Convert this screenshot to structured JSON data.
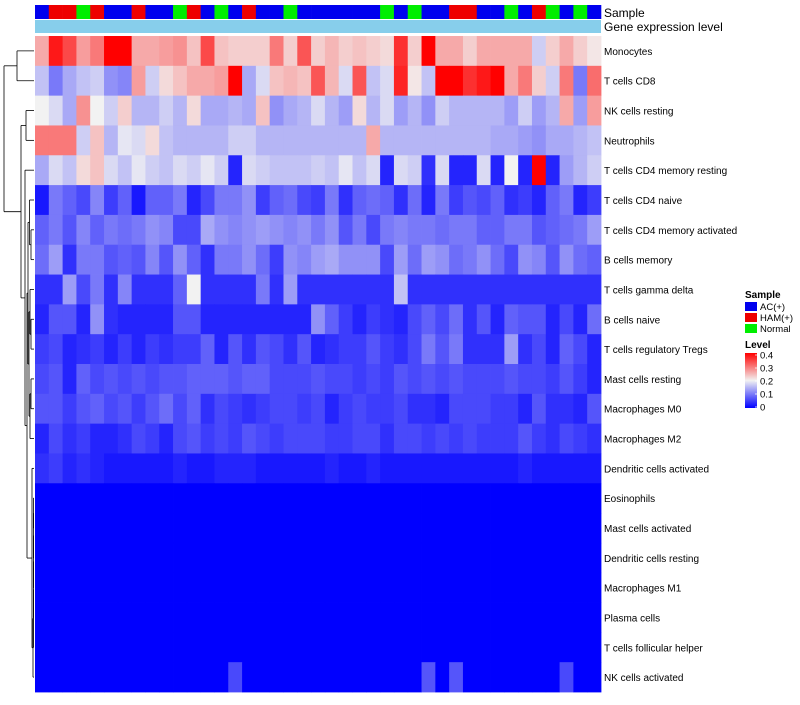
{
  "chart_data": {
    "type": "heatmap",
    "title": "",
    "annotations": {
      "sample_label": "Sample",
      "expression_label": "Gene expression level"
    },
    "legend": {
      "sample_title": "Sample",
      "sample_groups": [
        {
          "name": "AC(+)",
          "color": "#0000ee"
        },
        {
          "name": "HAM(+)",
          "color": "#ee0000"
        },
        {
          "name": "Normal",
          "color": "#00ee00"
        }
      ],
      "level_title": "Level",
      "level_ticks": [
        "0.4",
        "0.3",
        "0.2",
        "0.1",
        "0"
      ],
      "range": [
        0,
        0.4
      ],
      "placement": "right"
    },
    "colors": {
      "low": "#0000ff",
      "mid": "#f2f2f2",
      "high": "#ff0000",
      "expression_bar": "#87ceeb",
      "dendrogram": "#000000"
    },
    "sample_groups_per_column": [
      "AC",
      "HAM",
      "HAM",
      "Normal",
      "HAM",
      "AC",
      "AC",
      "HAM",
      "AC",
      "AC",
      "Normal",
      "HAM",
      "AC",
      "Normal",
      "AC",
      "HAM",
      "AC",
      "AC",
      "Normal",
      "AC",
      "AC",
      "AC",
      "AC",
      "AC",
      "AC",
      "Normal",
      "AC",
      "Normal",
      "AC",
      "AC",
      "HAM",
      "HAM",
      "AC",
      "AC",
      "Normal",
      "AC",
      "HAM",
      "Normal",
      "AC",
      "Normal",
      "AC"
    ],
    "row_labels": [
      "Monocytes",
      "T cells CD8",
      "NK cells resting",
      "Neutrophils",
      "T cells CD4 memory resting",
      "T cells CD4 naive",
      "T cells CD4 memory activated",
      "B cells memory",
      "T cells gamma delta",
      "B cells naive",
      "T cells regulatory  Tregs",
      "Mast cells resting",
      "Macrophages M0",
      "Macrophages M2",
      "Dendritic cells activated",
      "Eosinophils",
      "Mast cells activated",
      "Dendritic cells resting",
      "Macrophages M1",
      "Plasma cells",
      "T cells follicular helper",
      "NK cells activated"
    ],
    "values": [
      [
        0.26,
        0.38,
        0.34,
        0.27,
        0.3,
        0.4,
        0.4,
        0.26,
        0.26,
        0.27,
        0.28,
        0.24,
        0.34,
        0.24,
        0.23,
        0.23,
        0.23,
        0.3,
        0.23,
        0.33,
        0.23,
        0.25,
        0.23,
        0.24,
        0.23,
        0.22,
        0.36,
        0.23,
        0.4,
        0.26,
        0.26,
        0.23,
        0.26,
        0.26,
        0.26,
        0.26,
        0.17,
        0.23,
        0.26,
        0.23,
        0.21
      ],
      [
        0.16,
        0.1,
        0.14,
        0.16,
        0.17,
        0.12,
        0.11,
        0.27,
        0.17,
        0.22,
        0.24,
        0.26,
        0.26,
        0.27,
        0.4,
        0.14,
        0.18,
        0.24,
        0.25,
        0.24,
        0.33,
        0.25,
        0.18,
        0.33,
        0.16,
        0.18,
        0.37,
        0.21,
        0.16,
        0.4,
        0.4,
        0.36,
        0.38,
        0.4,
        0.26,
        0.3,
        0.23,
        0.17,
        0.3,
        0.1,
        0.31
      ],
      [
        0.2,
        0.18,
        0.14,
        0.28,
        0.2,
        0.17,
        0.23,
        0.15,
        0.15,
        0.17,
        0.15,
        0.22,
        0.14,
        0.14,
        0.15,
        0.14,
        0.24,
        0.12,
        0.14,
        0.15,
        0.18,
        0.15,
        0.13,
        0.22,
        0.15,
        0.18,
        0.13,
        0.15,
        0.12,
        0.17,
        0.15,
        0.15,
        0.15,
        0.15,
        0.13,
        0.17,
        0.13,
        0.15,
        0.26,
        0.13,
        0.27
      ],
      [
        0.3,
        0.3,
        0.3,
        0.17,
        0.24,
        0.15,
        0.19,
        0.18,
        0.22,
        0.16,
        0.15,
        0.15,
        0.15,
        0.15,
        0.17,
        0.17,
        0.15,
        0.15,
        0.15,
        0.15,
        0.15,
        0.15,
        0.15,
        0.15,
        0.26,
        0.15,
        0.15,
        0.15,
        0.15,
        0.15,
        0.15,
        0.15,
        0.15,
        0.14,
        0.14,
        0.13,
        0.12,
        0.14,
        0.14,
        0.15,
        0.16
      ],
      [
        0.14,
        0.18,
        0.16,
        0.22,
        0.24,
        0.18,
        0.16,
        0.19,
        0.17,
        0.16,
        0.18,
        0.17,
        0.19,
        0.17,
        0.03,
        0.18,
        0.17,
        0.16,
        0.16,
        0.16,
        0.17,
        0.16,
        0.19,
        0.16,
        0.18,
        0.03,
        0.18,
        0.17,
        0.04,
        0.18,
        0.03,
        0.03,
        0.18,
        0.03,
        0.2,
        0.03,
        0.4,
        0.03,
        0.13,
        0.15,
        0.17
      ],
      [
        0.02,
        0.1,
        0.08,
        0.06,
        0.11,
        0.05,
        0.08,
        0.02,
        0.08,
        0.08,
        0.1,
        0.03,
        0.06,
        0.1,
        0.1,
        0.12,
        0.05,
        0.08,
        0.09,
        0.06,
        0.05,
        0.1,
        0.04,
        0.08,
        0.09,
        0.08,
        0.04,
        0.09,
        0.03,
        0.1,
        0.05,
        0.07,
        0.06,
        0.08,
        0.04,
        0.05,
        0.03,
        0.08,
        0.1,
        0.03,
        0.05
      ],
      [
        0.08,
        0.1,
        0.07,
        0.11,
        0.08,
        0.1,
        0.09,
        0.1,
        0.12,
        0.11,
        0.06,
        0.06,
        0.14,
        0.12,
        0.11,
        0.12,
        0.13,
        0.12,
        0.11,
        0.12,
        0.1,
        0.12,
        0.07,
        0.1,
        0.06,
        0.1,
        0.11,
        0.1,
        0.1,
        0.09,
        0.1,
        0.1,
        0.08,
        0.08,
        0.1,
        0.1,
        0.07,
        0.08,
        0.09,
        0.1,
        0.13
      ],
      [
        0.09,
        0.13,
        0.04,
        0.1,
        0.1,
        0.07,
        0.08,
        0.07,
        0.11,
        0.07,
        0.12,
        0.08,
        0.04,
        0.1,
        0.1,
        0.12,
        0.09,
        0.05,
        0.12,
        0.11,
        0.13,
        0.14,
        0.12,
        0.12,
        0.12,
        0.06,
        0.13,
        0.09,
        0.13,
        0.12,
        0.09,
        0.1,
        0.12,
        0.09,
        0.06,
        0.12,
        0.11,
        0.07,
        0.12,
        0.09,
        0.08
      ],
      [
        0.04,
        0.04,
        0.13,
        0.06,
        0.1,
        0.04,
        0.11,
        0.04,
        0.04,
        0.04,
        0.08,
        0.2,
        0.04,
        0.04,
        0.04,
        0.04,
        0.1,
        0.04,
        0.13,
        0.04,
        0.04,
        0.04,
        0.04,
        0.04,
        0.04,
        0.04,
        0.16,
        0.04,
        0.04,
        0.04,
        0.04,
        0.04,
        0.04,
        0.04,
        0.04,
        0.04,
        0.04,
        0.04,
        0.04,
        0.04,
        0.04
      ],
      [
        0.03,
        0.07,
        0.07,
        0.03,
        0.12,
        0.04,
        0.03,
        0.03,
        0.03,
        0.03,
        0.07,
        0.07,
        0.03,
        0.03,
        0.03,
        0.03,
        0.03,
        0.03,
        0.03,
        0.03,
        0.12,
        0.08,
        0.05,
        0.03,
        0.05,
        0.04,
        0.03,
        0.06,
        0.08,
        0.06,
        0.09,
        0.04,
        0.07,
        0.03,
        0.08,
        0.07,
        0.07,
        0.03,
        0.06,
        0.03,
        0.09
      ],
      [
        0.05,
        0.06,
        0.03,
        0.04,
        0.05,
        0.03,
        0.05,
        0.03,
        0.05,
        0.04,
        0.05,
        0.05,
        0.08,
        0.03,
        0.07,
        0.04,
        0.07,
        0.06,
        0.04,
        0.07,
        0.03,
        0.04,
        0.05,
        0.05,
        0.07,
        0.05,
        0.04,
        0.06,
        0.1,
        0.07,
        0.1,
        0.04,
        0.04,
        0.04,
        0.13,
        0.04,
        0.06,
        0.03,
        0.08,
        0.06,
        0.03
      ],
      [
        0.06,
        0.07,
        0.03,
        0.08,
        0.06,
        0.07,
        0.06,
        0.07,
        0.06,
        0.07,
        0.07,
        0.08,
        0.08,
        0.08,
        0.07,
        0.08,
        0.08,
        0.06,
        0.06,
        0.06,
        0.07,
        0.06,
        0.06,
        0.05,
        0.06,
        0.05,
        0.07,
        0.06,
        0.07,
        0.06,
        0.07,
        0.06,
        0.06,
        0.06,
        0.07,
        0.06,
        0.06,
        0.05,
        0.07,
        0.05,
        0.03
      ],
      [
        0.07,
        0.07,
        0.05,
        0.07,
        0.08,
        0.06,
        0.07,
        0.05,
        0.07,
        0.09,
        0.06,
        0.08,
        0.04,
        0.06,
        0.05,
        0.04,
        0.05,
        0.06,
        0.06,
        0.05,
        0.06,
        0.03,
        0.05,
        0.06,
        0.05,
        0.05,
        0.06,
        0.04,
        0.04,
        0.03,
        0.06,
        0.06,
        0.06,
        0.05,
        0.05,
        0.03,
        0.07,
        0.04,
        0.04,
        0.03,
        0.07
      ],
      [
        0.03,
        0.06,
        0.04,
        0.05,
        0.03,
        0.03,
        0.04,
        0.06,
        0.05,
        0.03,
        0.06,
        0.07,
        0.05,
        0.06,
        0.05,
        0.07,
        0.06,
        0.05,
        0.06,
        0.06,
        0.06,
        0.05,
        0.05,
        0.06,
        0.06,
        0.04,
        0.06,
        0.06,
        0.05,
        0.06,
        0.05,
        0.06,
        0.05,
        0.05,
        0.05,
        0.07,
        0.05,
        0.04,
        0.06,
        0.05,
        0.04
      ],
      [
        0.04,
        0.05,
        0.03,
        0.04,
        0.03,
        0.02,
        0.02,
        0.02,
        0.02,
        0.02,
        0.03,
        0.02,
        0.02,
        0.03,
        0.03,
        0.03,
        0.02,
        0.02,
        0.02,
        0.02,
        0.02,
        0.03,
        0.02,
        0.02,
        0.03,
        0.02,
        0.02,
        0.02,
        0.02,
        0.02,
        0.02,
        0.02,
        0.02,
        0.02,
        0.02,
        0.03,
        0.02,
        0.02,
        0.02,
        0.02,
        0.02
      ],
      [
        0,
        0,
        0,
        0,
        0,
        0,
        0,
        0,
        0,
        0,
        0,
        0,
        0,
        0,
        0,
        0,
        0,
        0,
        0,
        0,
        0,
        0,
        0,
        0,
        0,
        0,
        0,
        0,
        0,
        0,
        0,
        0,
        0,
        0,
        0,
        0,
        0,
        0,
        0,
        0,
        0
      ],
      [
        0,
        0,
        0,
        0,
        0,
        0,
        0,
        0,
        0,
        0,
        0,
        0,
        0,
        0,
        0,
        0,
        0,
        0,
        0,
        0,
        0,
        0,
        0,
        0,
        0,
        0,
        0,
        0,
        0,
        0,
        0,
        0,
        0,
        0,
        0,
        0,
        0,
        0,
        0,
        0,
        0
      ],
      [
        0,
        0,
        0,
        0,
        0,
        0,
        0,
        0,
        0,
        0,
        0,
        0,
        0,
        0,
        0,
        0,
        0,
        0,
        0,
        0,
        0,
        0,
        0,
        0,
        0,
        0,
        0,
        0,
        0,
        0,
        0,
        0,
        0,
        0,
        0,
        0,
        0,
        0,
        0,
        0,
        0
      ],
      [
        0,
        0,
        0,
        0,
        0,
        0,
        0,
        0,
        0,
        0,
        0,
        0,
        0,
        0,
        0,
        0,
        0,
        0,
        0,
        0,
        0,
        0,
        0,
        0,
        0,
        0,
        0,
        0,
        0,
        0,
        0,
        0,
        0,
        0,
        0,
        0,
        0,
        0,
        0,
        0,
        0
      ],
      [
        0,
        0,
        0,
        0,
        0,
        0,
        0,
        0,
        0,
        0,
        0,
        0,
        0,
        0,
        0,
        0,
        0,
        0,
        0,
        0,
        0,
        0,
        0,
        0,
        0,
        0,
        0,
        0,
        0,
        0,
        0,
        0,
        0,
        0,
        0,
        0,
        0,
        0,
        0,
        0,
        0
      ],
      [
        0,
        0,
        0,
        0,
        0,
        0,
        0,
        0,
        0,
        0,
        0,
        0,
        0,
        0,
        0,
        0,
        0,
        0,
        0,
        0,
        0,
        0,
        0,
        0,
        0,
        0,
        0,
        0,
        0,
        0,
        0,
        0,
        0,
        0,
        0,
        0,
        0,
        0,
        0,
        0,
        0
      ],
      [
        0,
        0,
        0,
        0,
        0,
        0,
        0,
        0,
        0,
        0,
        0,
        0,
        0,
        0,
        0.06,
        0,
        0,
        0,
        0,
        0,
        0,
        0,
        0,
        0,
        0,
        0,
        0,
        0,
        0.07,
        0,
        0.07,
        0,
        0,
        0,
        0,
        0,
        0,
        0,
        0.06,
        0,
        0
      ]
    ]
  }
}
